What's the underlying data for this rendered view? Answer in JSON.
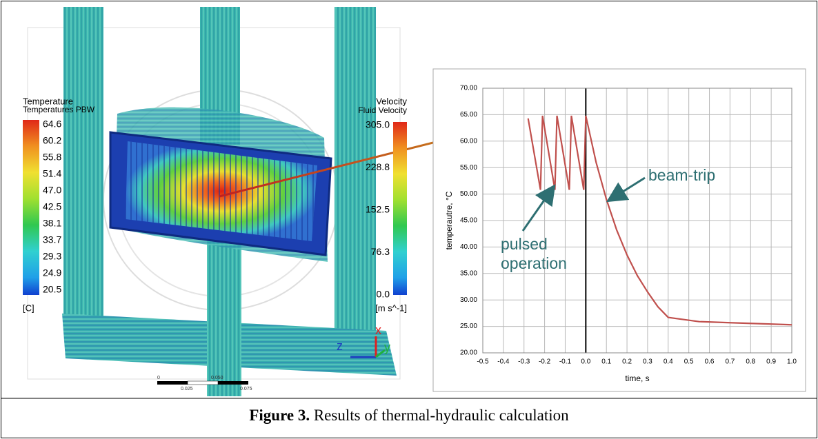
{
  "left_panel": {
    "temperature_legend": {
      "title": "Temperature",
      "subtitle": "Temperatures PBW",
      "labels": [
        "64.6",
        "60.2",
        "55.8",
        "51.4",
        "47.0",
        "42.5",
        "38.1",
        "33.7",
        "29.3",
        "24.9",
        "20.5"
      ],
      "unit": "[C]"
    },
    "velocity_legend": {
      "title": "Velocity",
      "subtitle": "Fluid Velocity",
      "labels": [
        "305.0",
        "228.8",
        "152.5",
        "76.3",
        "0.0"
      ],
      "unit": "[m s^-1]"
    },
    "axes_triad": [
      "z",
      "x",
      "y"
    ],
    "scale_bar": [
      "0",
      "0.025",
      "0.050",
      "0.075"
    ]
  },
  "chart_data": {
    "type": "line",
    "x_label": "time, s",
    "y_label": "temperautre, °C",
    "annotations": [
      "beam-trip",
      "pulsed operation"
    ],
    "x": [
      -0.28,
      -0.22,
      -0.21,
      -0.15,
      -0.14,
      -0.08,
      -0.07,
      -0.01,
      0.0,
      0.05,
      0.1,
      0.15,
      0.2,
      0.25,
      0.3,
      0.35,
      0.4,
      0.55,
      0.7,
      0.85,
      1.0
    ],
    "series": [
      {
        "color": "#c0504d",
        "values": [
          64.3,
          50.8,
          64.8,
          50.8,
          64.8,
          50.8,
          64.8,
          50.8,
          64.8,
          56.0,
          49.0,
          43.2,
          38.5,
          34.6,
          31.5,
          28.7,
          26.7,
          25.9,
          25.7,
          25.5,
          25.3
        ]
      }
    ],
    "xlim": [
      -0.5,
      1.0
    ],
    "xticks": [
      -0.5,
      -0.4,
      -0.3,
      -0.2,
      -0.1,
      {
        "value": 0,
        "label": "0.0"
      },
      0.1,
      0.2,
      0.3,
      0.4,
      0.5,
      0.6,
      0.7,
      0.8,
      0.9,
      {
        "value": 1,
        "label": "1.0"
      }
    ],
    "ylim": [
      20,
      70
    ],
    "yticks": [
      {
        "value": 20,
        "label": "20.00"
      },
      {
        "value": 25,
        "label": "25.00"
      },
      {
        "value": 30,
        "label": "30.00"
      },
      {
        "value": 35,
        "label": "35.00"
      },
      {
        "value": 40,
        "label": "40.00"
      },
      {
        "value": 45,
        "label": "45.00"
      },
      {
        "value": 50,
        "label": "50.00"
      },
      {
        "value": 55,
        "label": "55.00"
      },
      {
        "value": 60,
        "label": "60.00"
      },
      {
        "value": 65,
        "label": "65.00"
      },
      {
        "value": 70,
        "label": "70.00"
      }
    ],
    "grid": true
  },
  "caption": {
    "label": "Figure 3.",
    "text": "Results of thermal-hydraulic calculation"
  }
}
